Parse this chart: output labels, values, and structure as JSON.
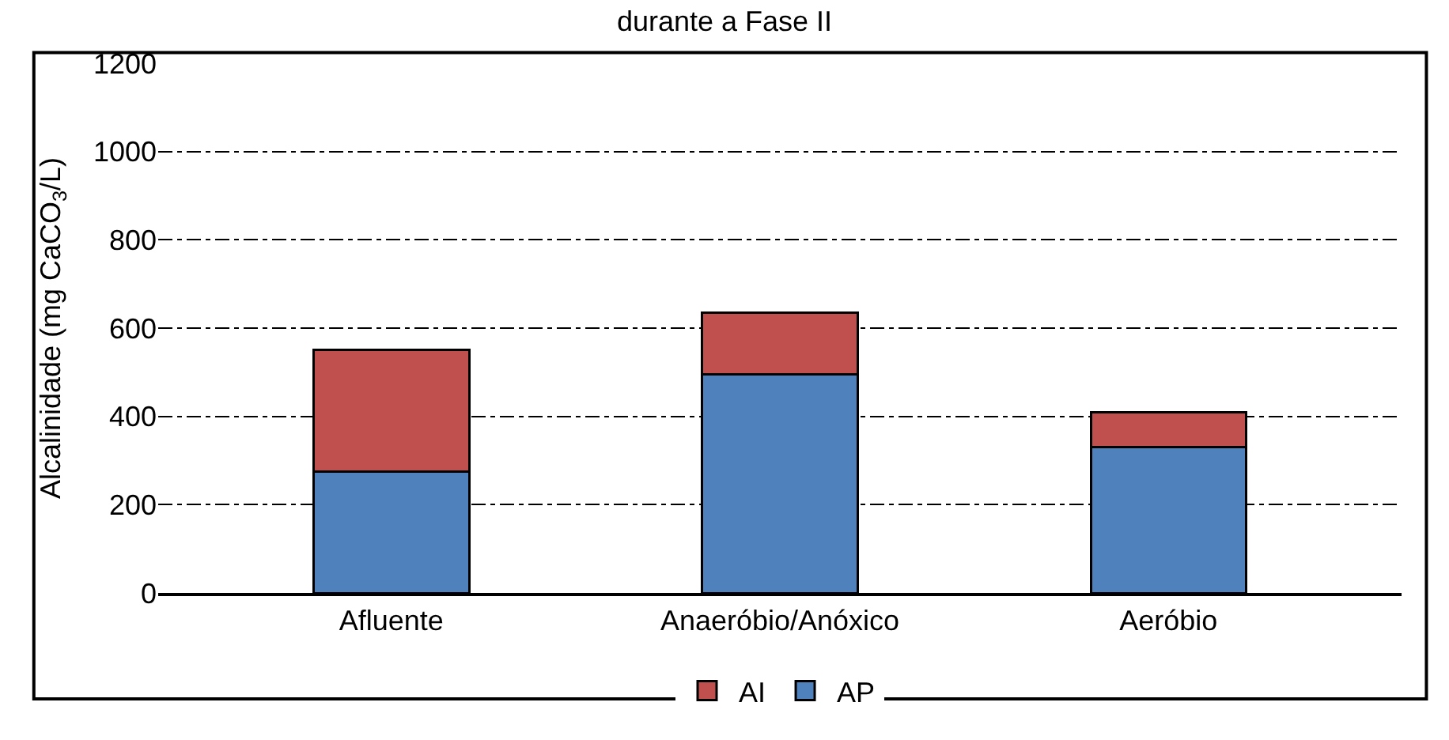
{
  "chart_data": {
    "type": "bar",
    "title": "durante a Fase II",
    "ylabel": "Alcalinidade (mg CaCO$_{3}$/L)",
    "categories": [
      "Afluente",
      "Anaeróbio/Anóxico",
      "Aeróbio"
    ],
    "stacked": true,
    "series": [
      {
        "name": "AP",
        "color": "#4f81bd",
        "values": [
          275,
          495,
          330
        ]
      },
      {
        "name": "AI",
        "color": "#c0504d",
        "values": [
          275,
          140,
          80
        ]
      }
    ],
    "ylim": [
      0,
      1200
    ],
    "yticks": [
      0,
      200,
      400,
      600,
      800,
      1000,
      1200
    ],
    "grid": "y",
    "line_style": "dashdot",
    "legend": "bottom"
  }
}
